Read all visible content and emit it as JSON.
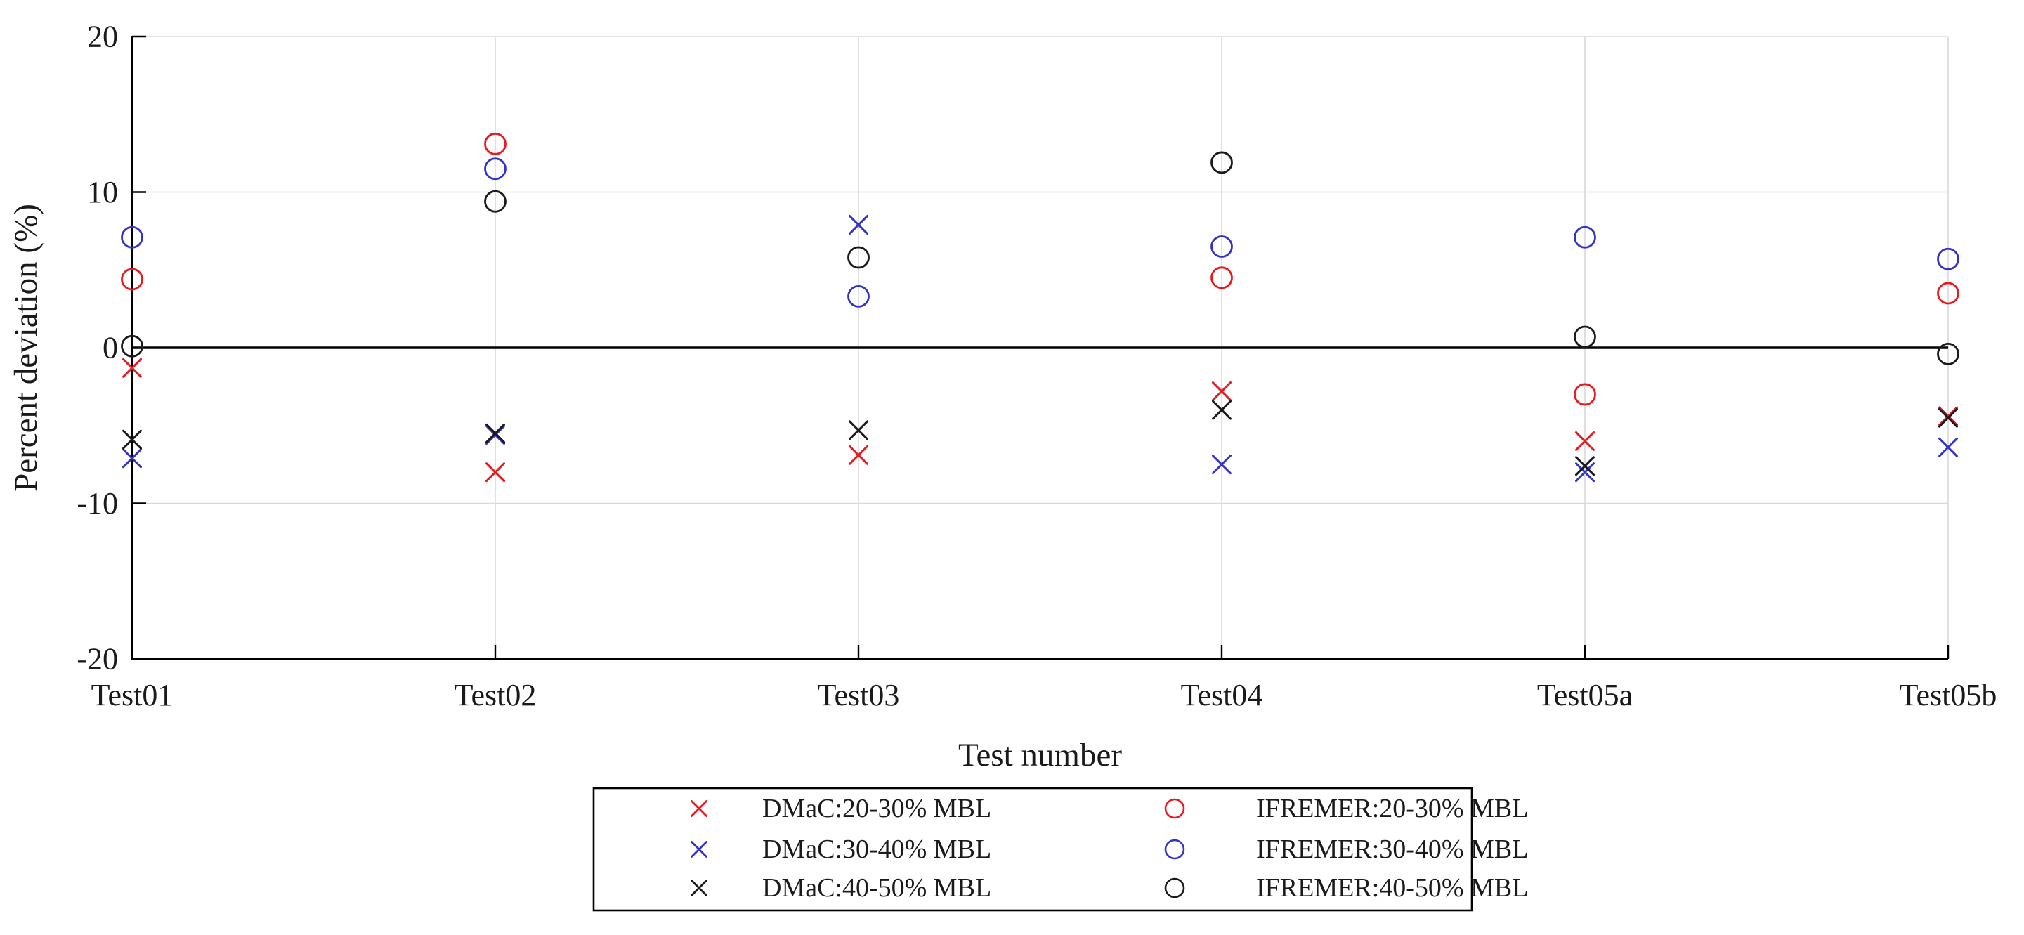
{
  "figure": {
    "background": "#ffffff"
  },
  "chart_data": {
    "type": "scatter",
    "title": "",
    "xlabel": "Test number",
    "ylabel": "Percent deviation (%)",
    "categories": [
      "Test01",
      "Test02",
      "Test03",
      "Test04",
      "Test05a",
      "Test05b"
    ],
    "ylim": [
      -20,
      20
    ],
    "y_ticks": [
      20,
      10,
      0,
      -10,
      -20
    ],
    "grid": true,
    "zero_line_y": 0,
    "legend_position": "below-center",
    "series": [
      {
        "name": "DMaC:20-30% MBL",
        "marker": "x",
        "color": "#e8191f",
        "values": [
          -1.3,
          -8.0,
          -6.9,
          -2.8,
          -6.0,
          -4.4
        ]
      },
      {
        "name": "DMaC:30-40% MBL",
        "marker": "x",
        "color": "#3333c8",
        "values": [
          -7.1,
          -5.6,
          7.9,
          -7.5,
          -8.0,
          -6.4
        ]
      },
      {
        "name": "DMaC:40-50% MBL",
        "marker": "x",
        "color": "#1a1a1a",
        "values": [
          -5.9,
          -5.5,
          -5.3,
          -4.0,
          -7.6,
          -4.5
        ]
      },
      {
        "name": "IFREMER:20-30% MBL",
        "marker": "o",
        "color": "#e8191f",
        "values": [
          4.4,
          13.1,
          null,
          4.5,
          -3.0,
          3.5
        ]
      },
      {
        "name": "IFREMER:30-40% MBL",
        "marker": "o",
        "color": "#3333c8",
        "values": [
          7.1,
          11.5,
          3.3,
          6.5,
          7.1,
          5.7
        ]
      },
      {
        "name": "IFREMER:40-50% MBL",
        "marker": "o",
        "color": "#1a1a1a",
        "values": [
          0.1,
          9.4,
          5.8,
          11.9,
          0.7,
          -0.4
        ]
      }
    ]
  },
  "colors": {
    "axis": "#000000",
    "zero_line": "#000000",
    "grid": "#d9d9d9",
    "legend_border": "#000000",
    "legend_background": "#ffffff",
    "tick": "#000000"
  }
}
